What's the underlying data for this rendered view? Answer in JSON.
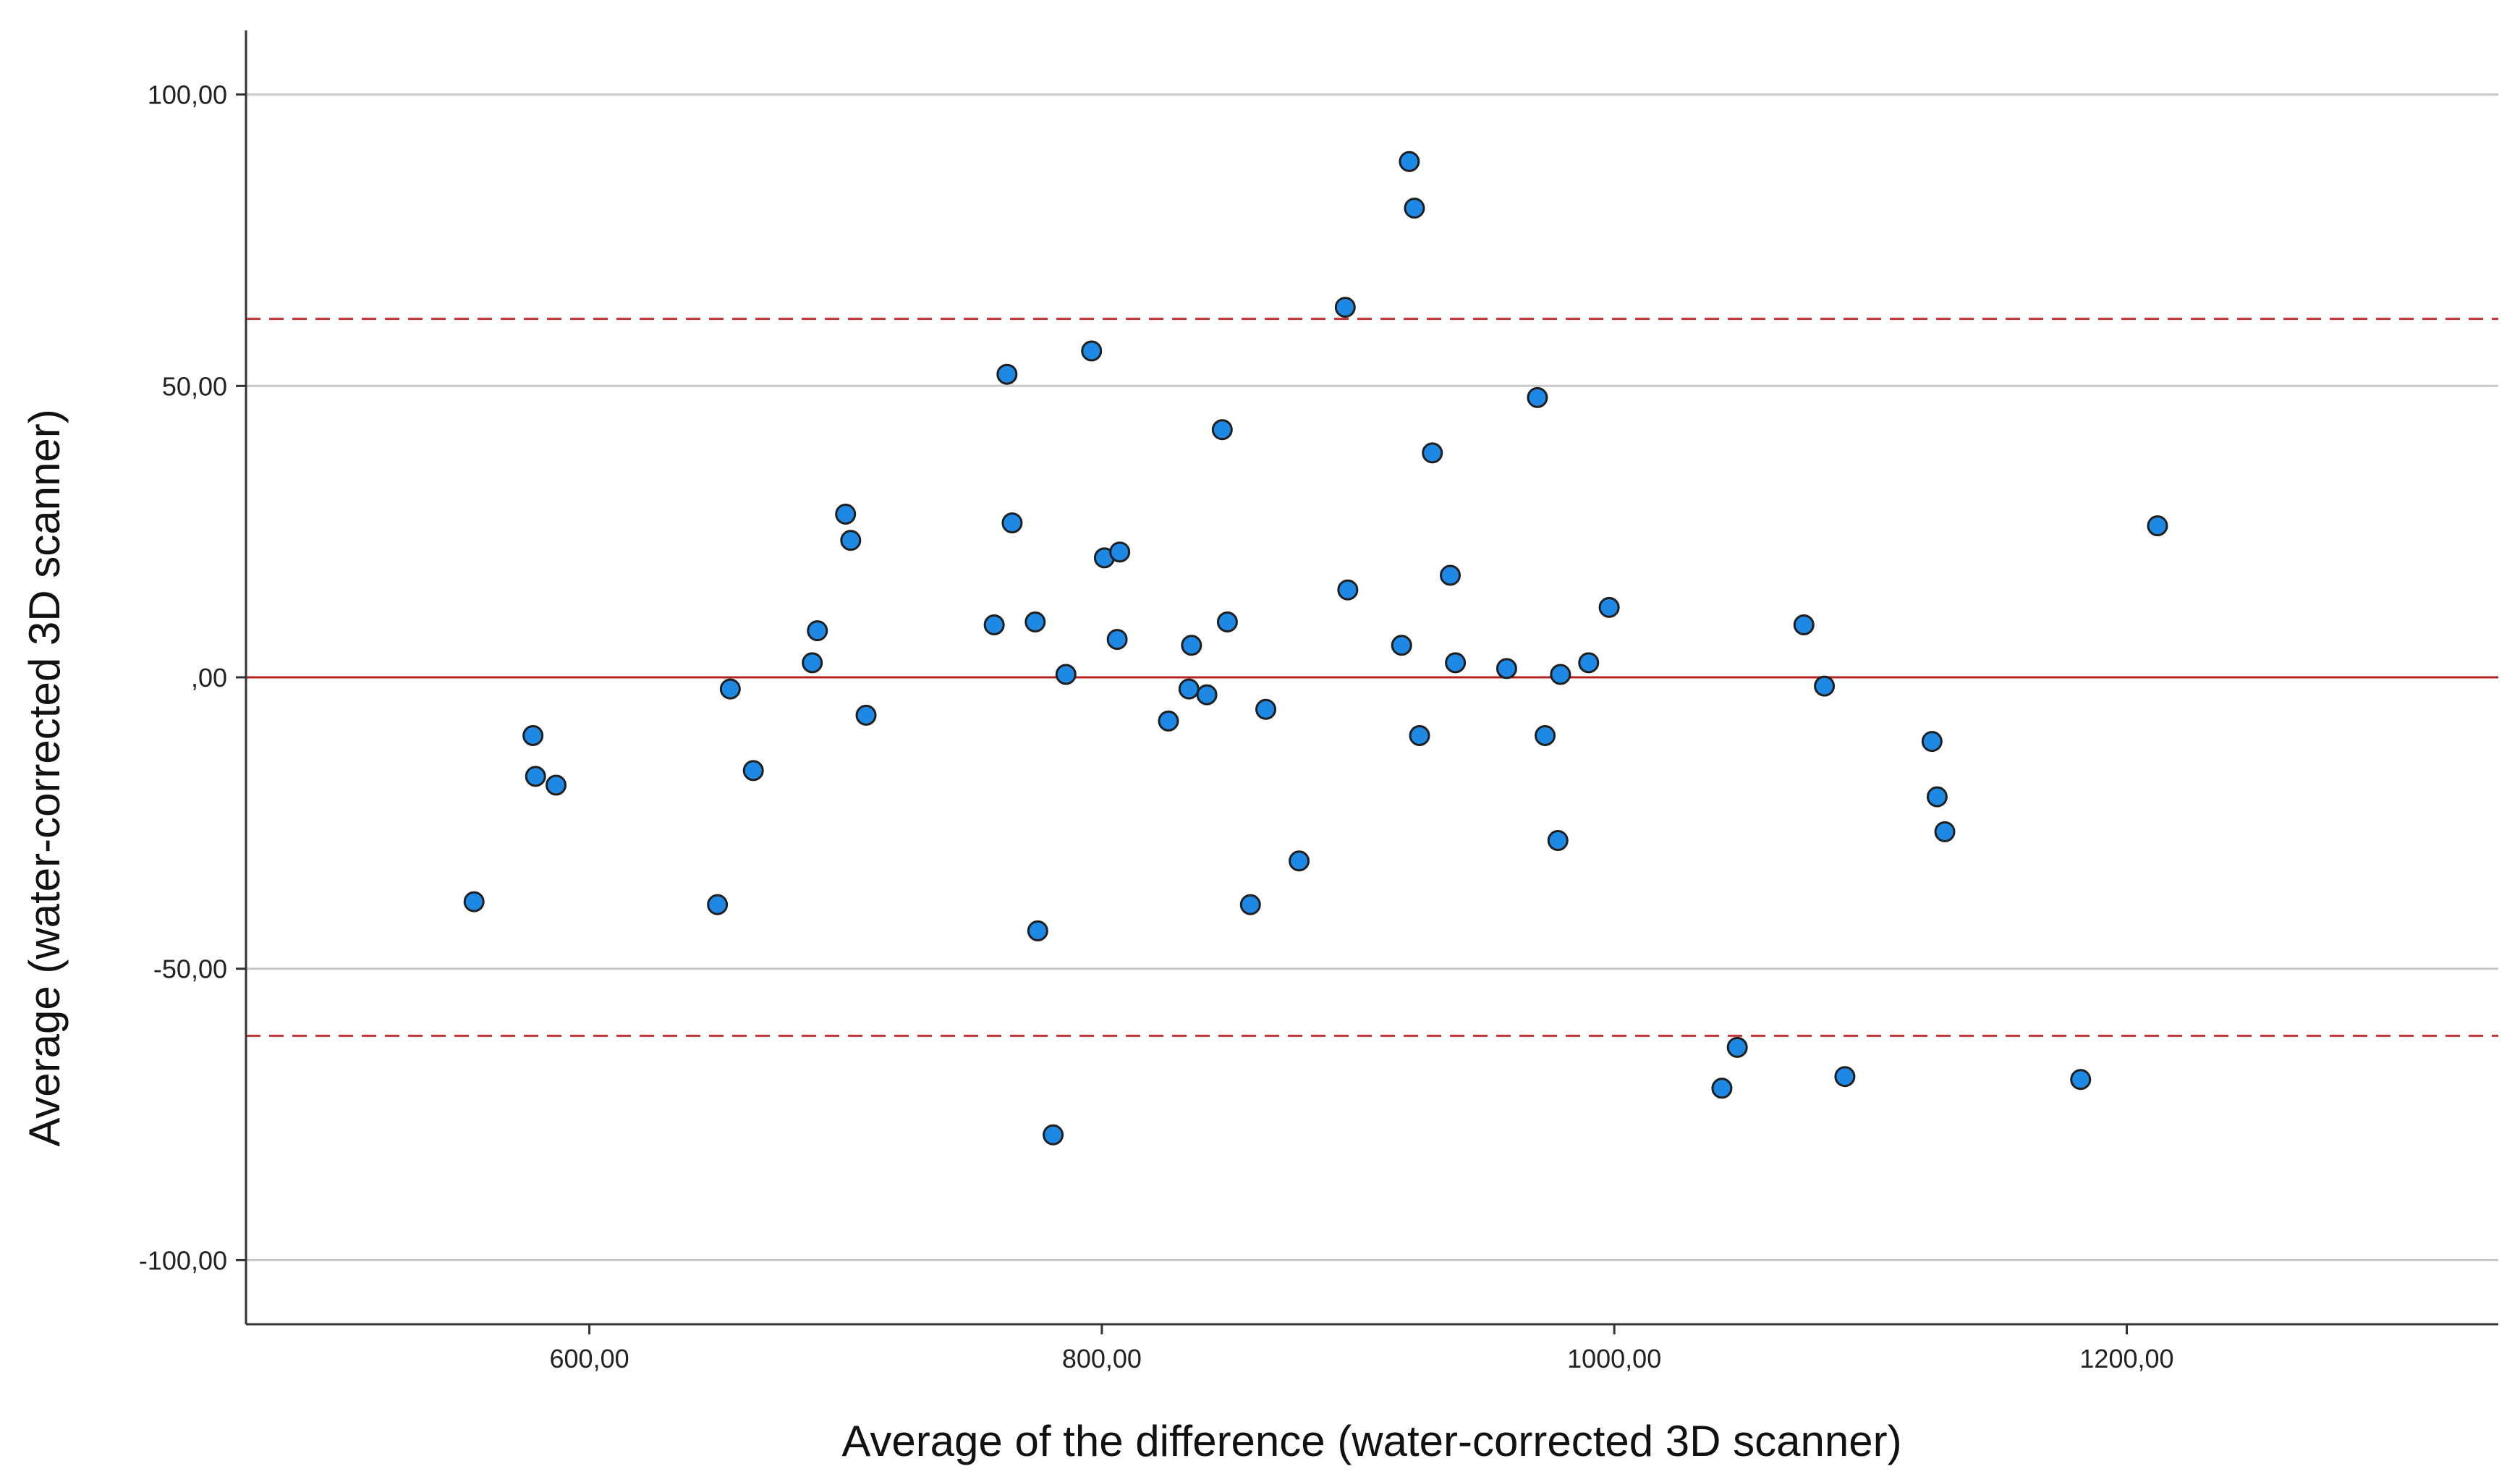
{
  "chart_data": {
    "type": "scatter",
    "title": "",
    "xlabel": "Average of the difference (water-corrected 3D scanner)",
    "ylabel": "Average (water-corrected 3D scanner)",
    "xlim": [
      466,
      1345
    ],
    "ylim": [
      -111,
      111
    ],
    "x_ticks": [
      600,
      800,
      1000,
      1200
    ],
    "x_tick_labels": [
      "600,00",
      "800,00",
      "1000,00",
      "1200,00"
    ],
    "y_ticks": [
      -100,
      -50,
      0,
      50,
      100
    ],
    "y_tick_labels": [
      "-100,00",
      "-50,00",
      ",00",
      "50,00",
      "100,00"
    ],
    "horizontal_gridlines": true,
    "reference_lines": [
      {
        "name": "mean",
        "y": 0,
        "style": "solid",
        "color": "#b22222"
      },
      {
        "name": "upper limit of agreement",
        "y": 61.5,
        "style": "dashed",
        "color": "#c83232"
      },
      {
        "name": "lower limit of agreement",
        "y": -61.5,
        "style": "dashed",
        "color": "#c83232"
      }
    ],
    "marker_color": "#1e88e5",
    "marker_edge_color": "#1f1f1f",
    "points": [
      [
        555,
        -38.5
      ],
      [
        578,
        -10
      ],
      [
        579,
        -17
      ],
      [
        587,
        -18.5
      ],
      [
        650,
        -39
      ],
      [
        655,
        -2
      ],
      [
        664,
        -16
      ],
      [
        687,
        2.5
      ],
      [
        689,
        8
      ],
      [
        700,
        28
      ],
      [
        702,
        23.5
      ],
      [
        708,
        -6.5
      ],
      [
        758,
        9
      ],
      [
        763,
        52
      ],
      [
        765,
        26.5
      ],
      [
        774,
        9.5
      ],
      [
        775,
        -43.5
      ],
      [
        781,
        -78.5
      ],
      [
        786,
        0.5
      ],
      [
        796,
        56
      ],
      [
        801,
        20.5
      ],
      [
        806,
        6.5
      ],
      [
        807,
        21.5
      ],
      [
        826,
        -7.5
      ],
      [
        834,
        -2
      ],
      [
        835,
        5.5
      ],
      [
        841,
        -3
      ],
      [
        847,
        42.5
      ],
      [
        849,
        9.5
      ],
      [
        858,
        -39
      ],
      [
        864,
        -5.5
      ],
      [
        877,
        -31.5
      ],
      [
        895,
        63.5
      ],
      [
        896,
        15
      ],
      [
        917,
        5.5
      ],
      [
        920,
        88.5
      ],
      [
        922,
        80.5
      ],
      [
        924,
        -10
      ],
      [
        929,
        38.5
      ],
      [
        936,
        17.5
      ],
      [
        938,
        2.5
      ],
      [
        958,
        1.5
      ],
      [
        970,
        48
      ],
      [
        973,
        -10
      ],
      [
        978,
        -28
      ],
      [
        979,
        0.5
      ],
      [
        990,
        2.5
      ],
      [
        998,
        12
      ],
      [
        1042,
        -70.5
      ],
      [
        1048,
        -63.5
      ],
      [
        1074,
        9
      ],
      [
        1082,
        -1.5
      ],
      [
        1090,
        -68.5
      ],
      [
        1124,
        -11
      ],
      [
        1126,
        -20.5
      ],
      [
        1129,
        -26.5
      ],
      [
        1182,
        -69
      ],
      [
        1212,
        26
      ]
    ]
  }
}
